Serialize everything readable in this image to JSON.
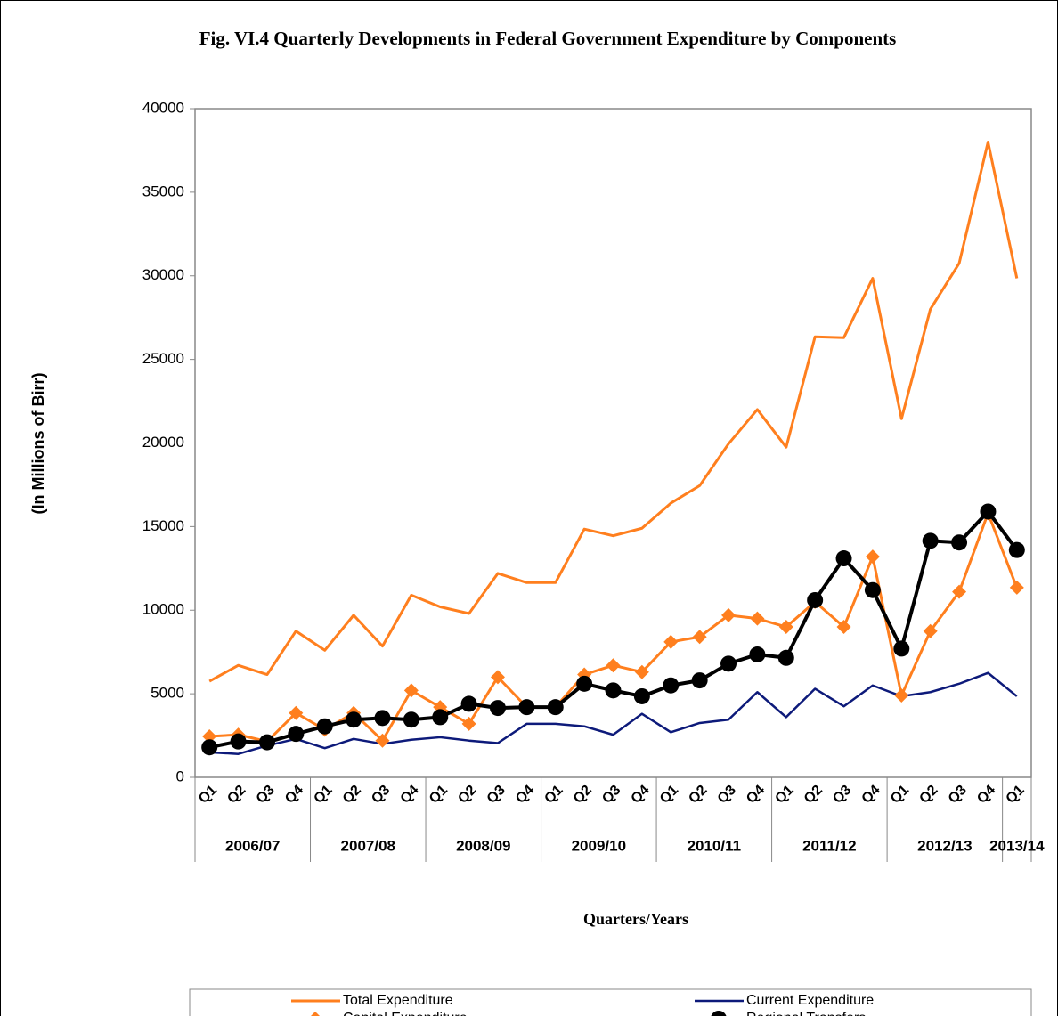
{
  "chart_data": {
    "type": "line",
    "title": "Fig. VI.4 Quarterly Developments in Federal Government Expenditure by Components",
    "y_label": "(In Millions of Birr)",
    "x_label": "Quarters/Years",
    "categories": [
      "Q1",
      "Q2",
      "Q3",
      "Q4",
      "Q1",
      "Q2",
      "Q3",
      "Q4",
      "Q1",
      "Q2",
      "Q3",
      "Q4",
      "Q1",
      "Q2",
      "Q3",
      "Q4",
      "Q1",
      "Q2",
      "Q3",
      "Q4",
      "Q1",
      "Q2",
      "Q3",
      "Q4",
      "Q1",
      "Q2",
      "Q3",
      "Q4",
      "Q1"
    ],
    "year_labels": [
      "2006/07",
      "2007/08",
      "2008/09",
      "2009/10",
      "2010/11",
      "2011/12",
      "2012/13",
      "2013/14"
    ],
    "ylim": [
      0,
      40000
    ],
    "yticks": [
      0,
      5000,
      10000,
      15000,
      20000,
      25000,
      30000,
      35000,
      40000
    ],
    "grid": false,
    "legend": "bottom",
    "series": [
      {
        "name": "Total Expenditure",
        "color": "#ff7f1e",
        "marker": "none",
        "values": [
          5750,
          6700,
          6150,
          8750,
          7600,
          9700,
          7850,
          10900,
          10200,
          9800,
          12200,
          11650,
          11650,
          14850,
          14450,
          14900,
          16400,
          17450,
          19950,
          22000,
          19750,
          26350,
          26300,
          29850,
          21450,
          28000,
          30750,
          38000,
          29850
        ]
      },
      {
        "name": "Current Expenditure",
        "color": "#0d1a7a",
        "marker": "none",
        "values": [
          1500,
          1400,
          1900,
          2300,
          1750,
          2300,
          2000,
          2250,
          2400,
          2200,
          2050,
          3200,
          3200,
          3050,
          2550,
          3800,
          2700,
          3250,
          3450,
          5100,
          3600,
          5300,
          4250,
          5500,
          4850,
          5100,
          5600,
          6250,
          4850
        ]
      },
      {
        "name": "Capital Expenditure",
        "color": "#ff7f1e",
        "marker": "diamond",
        "values": [
          2450,
          2550,
          2150,
          3850,
          2850,
          3850,
          2200,
          5200,
          4200,
          3200,
          6000,
          4200,
          4200,
          6150,
          6700,
          6300,
          8100,
          8400,
          9700,
          9500,
          9000,
          10500,
          9000,
          13200,
          4900,
          8750,
          11100,
          15800,
          11350
        ]
      },
      {
        "name": "Regional Transfers",
        "color": "#000000",
        "marker": "circle",
        "values": [
          1800,
          2150,
          2100,
          2600,
          3050,
          3450,
          3550,
          3450,
          3600,
          4400,
          4150,
          4200,
          4200,
          5600,
          5200,
          4850,
          5500,
          5800,
          6800,
          7350,
          7150,
          10600,
          13100,
          11200,
          7700,
          14150,
          14050,
          15900,
          13600
        ]
      }
    ]
  }
}
